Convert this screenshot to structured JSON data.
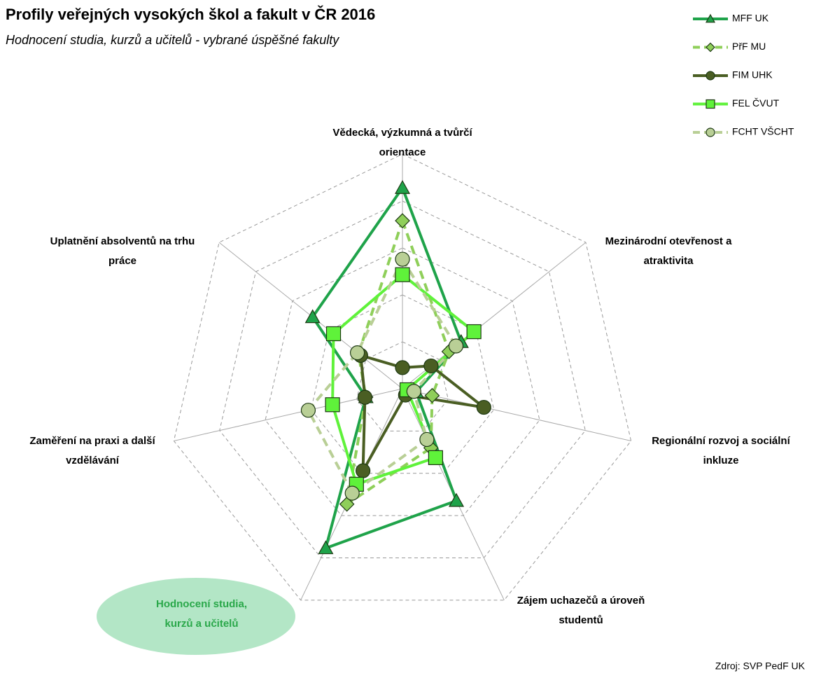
{
  "chart_data": {
    "type": "radar",
    "title": "Profily veřejných vysokých škol a fakult v ČR 2016",
    "subtitle": "Hodnocení studia, kurzů a učitelů - vybrané úspěšné fakulty",
    "source": "Zdroj: SVP PedF UK",
    "categories": [
      [
        "Vědecká, výzkumná a tvůrčí",
        "orientace"
      ],
      [
        "Mezinárodní otevřenost a",
        "atraktivita"
      ],
      [
        "Regionální rozvoj a sociální",
        "inkluze"
      ],
      [
        "Zájem uchazečů a  úroveň",
        "studentů"
      ],
      [
        "Hodnocení  studia,",
        "kurzů  a učitelů"
      ],
      [
        "Zaměření na praxi a další",
        "vzdělávání"
      ],
      [
        "Uplatnění absolventů na trhu",
        "práce"
      ]
    ],
    "rlim": [
      0,
      5
    ],
    "rticks": [
      1,
      2,
      3,
      4,
      5
    ],
    "grid": true,
    "legend": "top-right",
    "series": [
      {
        "name": "MFF UK",
        "color": "#1fa34a",
        "marker": "triangle",
        "dashed": false,
        "values": [
          4.28,
          1.6,
          0.3,
          2.65,
          3.77,
          0.8,
          2.45
        ]
      },
      {
        "name": "PřF MU",
        "color": "#8fcf5a",
        "marker": "diamond",
        "dashed": true,
        "values": [
          3.58,
          1.27,
          0.65,
          1.4,
          2.73,
          0.8,
          1.2
        ]
      },
      {
        "name": "FIM UHK",
        "color": "#4a5e23",
        "marker": "circle",
        "dashed": false,
        "values": [
          0.45,
          0.78,
          1.78,
          0.15,
          1.94,
          0.82,
          1.14
        ]
      },
      {
        "name": "FEL ČVUT",
        "color": "#5ff23a",
        "marker": "square",
        "dashed": false,
        "values": [
          2.43,
          1.95,
          0.1,
          1.63,
          2.26,
          1.53,
          1.88
        ]
      },
      {
        "name": "FCHT VŠCHT",
        "color": "#b9cf96",
        "marker": "circle",
        "dashed": true,
        "values": [
          2.76,
          1.46,
          0.25,
          1.2,
          2.47,
          2.06,
          1.23
        ]
      }
    ]
  }
}
